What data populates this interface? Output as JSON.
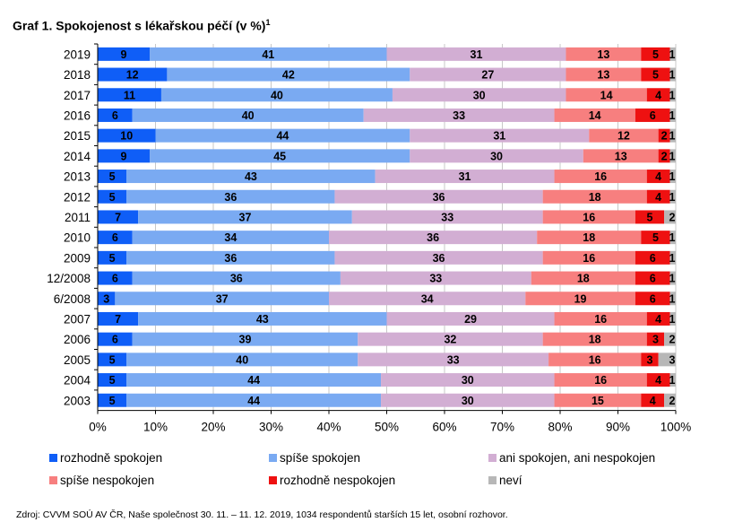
{
  "title": "Graf 1. Spokojenost s lékařskou péčí (v %)",
  "title_sup": "1",
  "source": "Zdroj: CVVM SOÚ AV ČR, Naše společnost 30. 11. – 11. 12. 2019, 1034 respondentů starších 15 let, osobní rozhovor.",
  "chart_data": {
    "type": "bar",
    "orientation": "horizontal",
    "stacked": "100%",
    "categories": [
      "2019",
      "2018",
      "2017",
      "2016",
      "2015",
      "2014",
      "2013",
      "2012",
      "2011",
      "2010",
      "2009",
      "12/2008",
      "6/2008",
      "2007",
      "2006",
      "2005",
      "2004",
      "2003"
    ],
    "xlim": [
      0,
      100
    ],
    "xticks": [
      "0%",
      "10%",
      "20%",
      "30%",
      "40%",
      "50%",
      "60%",
      "70%",
      "80%",
      "90%",
      "100%"
    ],
    "grid": true,
    "legend_position": "bottom",
    "series": [
      {
        "name": "rozhodně spokojen",
        "color": "#0f5ef7",
        "values": [
          9,
          12,
          11,
          6,
          10,
          9,
          5,
          5,
          7,
          6,
          5,
          6,
          3,
          7,
          6,
          5,
          5,
          5
        ]
      },
      {
        "name": "spíše spokojen",
        "color": "#7aaaf2",
        "values": [
          41,
          42,
          40,
          40,
          44,
          45,
          43,
          36,
          37,
          34,
          36,
          36,
          37,
          43,
          39,
          40,
          44,
          44
        ]
      },
      {
        "name": "ani spokojen, ani nespokojen",
        "color": "#d2aed3",
        "values": [
          31,
          27,
          30,
          33,
          31,
          30,
          31,
          36,
          33,
          36,
          36,
          33,
          34,
          29,
          32,
          33,
          30,
          30
        ]
      },
      {
        "name": "spíše nespokojen",
        "color": "#f77f7f",
        "values": [
          13,
          13,
          14,
          14,
          12,
          13,
          16,
          18,
          16,
          18,
          16,
          18,
          19,
          16,
          18,
          16,
          16,
          15
        ]
      },
      {
        "name": "rozhodně nespokojen",
        "color": "#ee1111",
        "values": [
          5,
          5,
          4,
          6,
          2,
          2,
          4,
          4,
          5,
          5,
          6,
          6,
          6,
          4,
          3,
          3,
          4,
          4
        ]
      },
      {
        "name": "neví",
        "color": "#b7b7b7",
        "values": [
          1,
          1,
          1,
          1,
          1,
          1,
          1,
          1,
          2,
          1,
          1,
          1,
          1,
          1,
          2,
          3,
          1,
          2
        ]
      }
    ]
  }
}
